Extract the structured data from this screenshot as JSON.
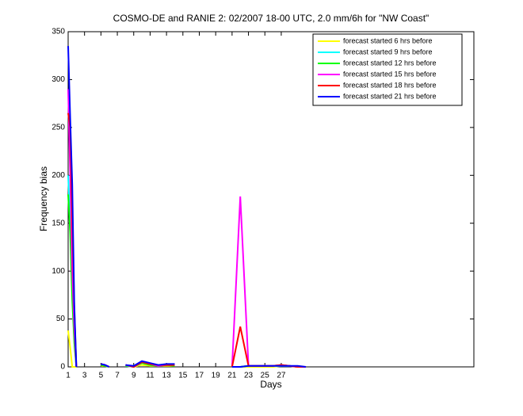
{
  "chart_data": {
    "type": "line",
    "title": "COSMO-DE and RANIE 2: 02/2007 18-00 UTC, 2.0 mm/6h for \"NW Coast\"",
    "x_label": "Days",
    "y_label": "Frequency bias",
    "x": [
      1,
      1.25,
      1.5,
      1.75,
      2,
      3,
      5,
      5.5,
      6,
      7,
      8,
      9,
      10,
      11,
      12,
      13,
      14,
      16,
      19,
      20,
      21,
      22,
      23,
      24,
      25,
      26,
      27,
      28,
      29,
      30
    ],
    "series": [
      {
        "name": "forecast started 6 hrs before",
        "color": "#ffff00",
        "values": [
          38,
          20,
          0,
          0,
          0,
          null,
          1,
          1,
          0,
          null,
          1,
          0,
          2,
          1,
          1,
          1,
          1,
          null,
          0,
          null,
          0,
          0,
          0,
          0,
          0,
          0,
          1,
          1,
          0,
          0
        ]
      },
      {
        "name": "forecast started 9 hrs before",
        "color": "#00ffff",
        "values": [
          200,
          150,
          80,
          30,
          0,
          null,
          2,
          2,
          0,
          null,
          1,
          0,
          4,
          2,
          1,
          2,
          2,
          null,
          0,
          null,
          0,
          0,
          1,
          1,
          1,
          1,
          1,
          1,
          0,
          0
        ]
      },
      {
        "name": "forecast started 12 hrs before",
        "color": "#00ff00",
        "values": [
          180,
          140,
          70,
          25,
          0,
          null,
          2,
          1,
          0,
          null,
          1,
          1,
          4,
          2,
          1,
          2,
          1,
          null,
          0,
          null,
          0,
          0,
          1,
          1,
          1,
          1,
          2,
          1,
          0,
          0
        ]
      },
      {
        "name": "forecast started 15 hrs before",
        "color": "#ff00ff",
        "values": [
          290,
          200,
          100,
          40,
          0,
          null,
          3,
          2,
          0,
          null,
          2,
          0,
          5,
          3,
          1,
          2,
          2,
          null,
          0,
          null,
          0,
          178,
          1,
          1,
          1,
          1,
          2,
          1,
          0,
          0
        ]
      },
      {
        "name": "forecast started 18 hrs before",
        "color": "#ff0000",
        "values": [
          265,
          250,
          150,
          60,
          0,
          null,
          3,
          2,
          0,
          null,
          2,
          0,
          5,
          3,
          2,
          2,
          2,
          null,
          0,
          null,
          0,
          42,
          1,
          1,
          1,
          1,
          2,
          1,
          0,
          0
        ]
      },
      {
        "name": "forecast started 21 hrs before",
        "color": "#0000ff",
        "values": [
          335,
          260,
          190,
          65,
          0,
          null,
          3,
          2,
          0,
          null,
          2,
          1,
          6,
          4,
          2,
          3,
          3,
          null,
          0,
          null,
          0,
          0,
          1,
          1,
          1,
          1,
          1,
          1,
          1,
          0
        ]
      }
    ],
    "xlim": [
      1,
      50.5
    ],
    "xticks": [
      1,
      3,
      5,
      7,
      9,
      11,
      13,
      15,
      17,
      19,
      21,
      23,
      25,
      27
    ],
    "ylim": [
      0,
      350
    ],
    "yticks": [
      0,
      50,
      100,
      150,
      200,
      250,
      300,
      350
    ],
    "legend": "upper right"
  }
}
